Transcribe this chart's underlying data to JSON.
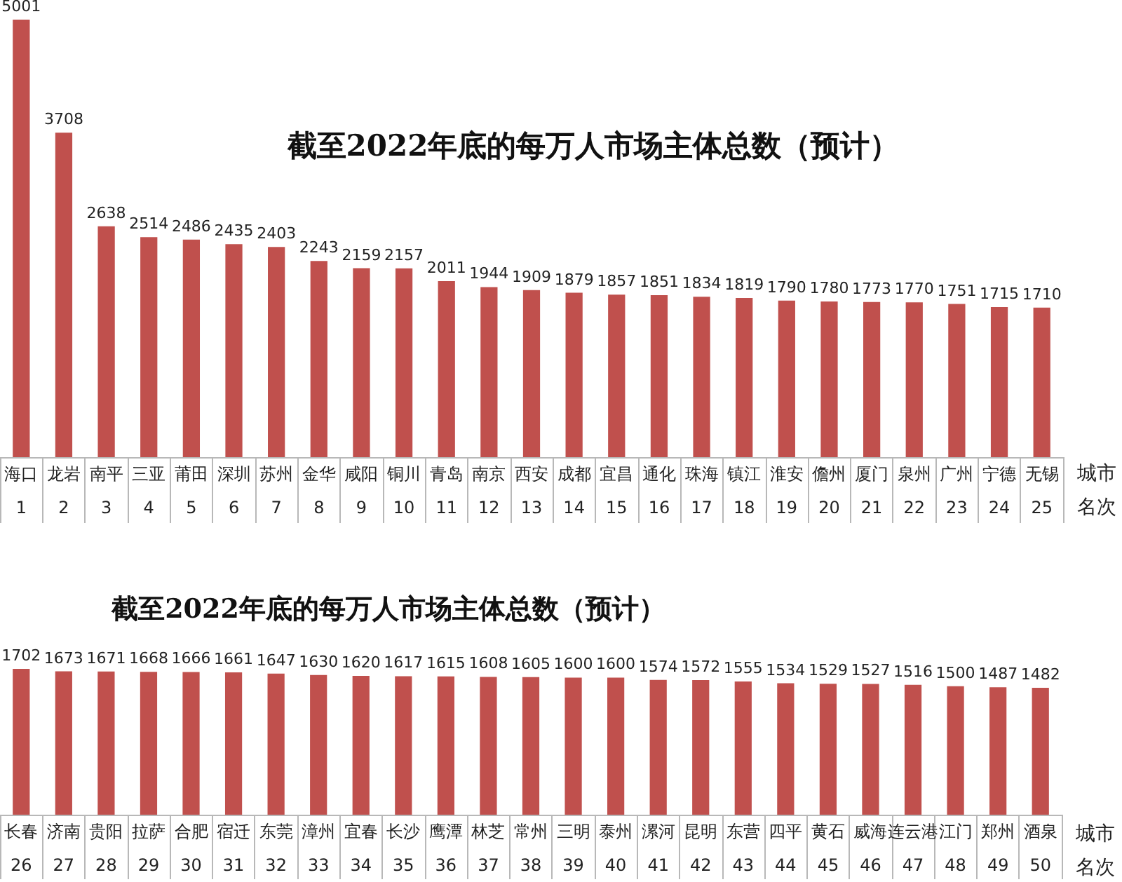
{
  "chart_data": [
    {
      "type": "bar",
      "title": "截至2022年底的每万人市场主体总数（预计）",
      "xlabel": "城市名次",
      "categories": [
        "海口\n1",
        "龙岩\n2",
        "南平\n3",
        "三亚\n4",
        "莆田\n5",
        "深圳\n6",
        "苏州\n7",
        "金华\n8",
        "咸阳\n9",
        "铜川\n10",
        "青岛\n11",
        "南京\n12",
        "西安\n13",
        "成都\n14",
        "宜昌\n15",
        "通化\n16",
        "珠海\n17",
        "镇江\n18",
        "淮安\n19",
        "儋州\n20",
        "厦门\n21",
        "泉州\n22",
        "广州\n23",
        "宁德\n24",
        "无锡\n25"
      ],
      "values": [
        5001,
        3708,
        2638,
        2514,
        2486,
        2435,
        2403,
        2243,
        2159,
        2157,
        2011,
        1944,
        1909,
        1879,
        1857,
        1851,
        1834,
        1819,
        1790,
        1780,
        1773,
        1770,
        1751,
        1715,
        1710
      ],
      "color": "#c0504d",
      "data_labels": true,
      "tick_labels": "x"
    },
    {
      "type": "bar",
      "title": "截至2022年底的每万人市场主体总数（预计）",
      "xlabel": "城市名次",
      "categories": [
        "长春\n26",
        "济南\n27",
        "贵阳\n28",
        "拉萨\n29",
        "合肥\n30",
        "宿迁\n31",
        "东莞\n32",
        "漳州\n33",
        "宜春\n34",
        "长沙\n35",
        "鹰潭\n36",
        "林芝\n37",
        "常州\n38",
        "三明\n39",
        "泰州\n40",
        "漯河\n41",
        "昆明\n42",
        "东营\n43",
        "四平\n44",
        "黄石\n45",
        "威海\n46",
        "连云港\n47",
        "江门\n48",
        "郑州\n49",
        "酒泉\n50"
      ],
      "values": [
        1702,
        1673,
        1671,
        1668,
        1666,
        1661,
        1647,
        1630,
        1620,
        1617,
        1615,
        1608,
        1605,
        1600,
        1600,
        1574,
        1572,
        1555,
        1534,
        1529,
        1527,
        1516,
        1500,
        1487,
        1482
      ],
      "color": "#c0504d",
      "data_labels": true,
      "tick_labels": "x"
    }
  ]
}
